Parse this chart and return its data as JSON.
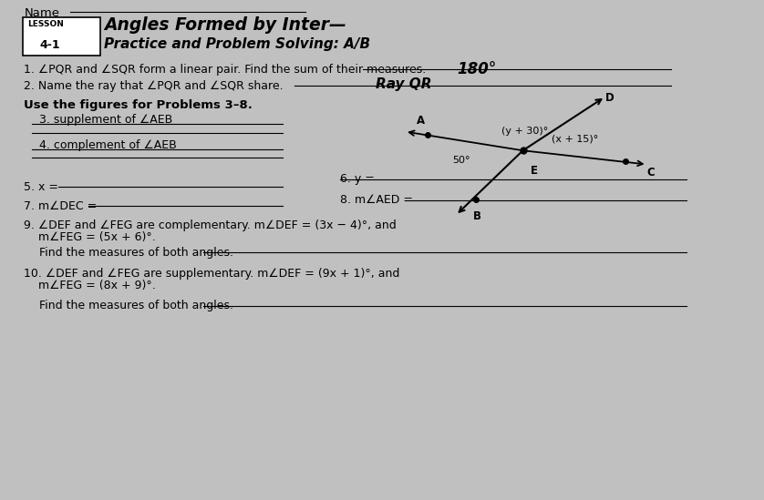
{
  "bg_color": "#c0c0c0",
  "title_lesson": "LESSON",
  "title_number": "4-1",
  "title_sub": "Practice and Problem Solving: A/B",
  "name_label": "Name",
  "q1": "1. ∠PQR and ∠SQR form a linear pair. Find the sum of their measures.",
  "q1_answer": "180°",
  "q2": "2. Name the ray that ∠PQR and ∠SQR share.",
  "q2_answer": "Ray QR",
  "use_figures": "Use the figures for Problems 3–8.",
  "q3": "3. supplement of ∠AEB",
  "q4": "4. complement of ∠AEB",
  "q5": "5. x =",
  "q6": "6. y =",
  "q7": "7. m∠DEC =",
  "q8": "8. m∠AED =",
  "q9_line1": "9. ∠DEF and ∠FEG are complementary. m∠DEF = (3x − 4)°, and",
  "q9_line2": "    m∠FEG = (5x + 6)°.",
  "q9_find": "Find the measures of both angles.",
  "q10_line1": "10. ∠DEF and ∠FEG are supplementary. m∠DEF = (9x + 1)°, and",
  "q10_line2": "    m∠FEG = (8x + 9)°.",
  "q10_find": "Find the measures of both angles.",
  "angle_50": "50°",
  "angle_y30": "(y + 30)°",
  "angle_x15": "(x + 15)°",
  "label_A": "A",
  "label_B": "B",
  "label_C": "C",
  "label_D": "D",
  "label_E": "E"
}
